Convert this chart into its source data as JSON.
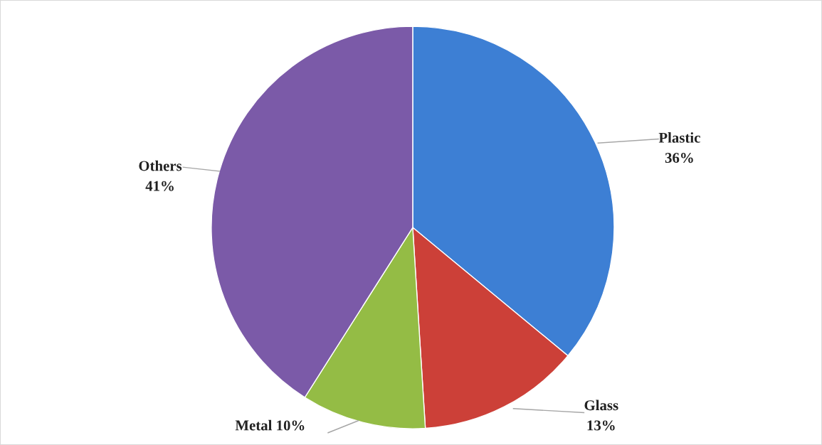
{
  "chart_data": {
    "type": "pie",
    "categories": [
      "Plastic",
      "Glass",
      "Metal",
      "Others"
    ],
    "values": [
      36,
      13,
      10,
      41
    ],
    "value_labels": [
      "36%",
      "13%",
      "10%",
      "41%"
    ],
    "colors": [
      "#3d7fd4",
      "#cc4038",
      "#94bc45",
      "#7b5aa8"
    ],
    "legend": false
  }
}
